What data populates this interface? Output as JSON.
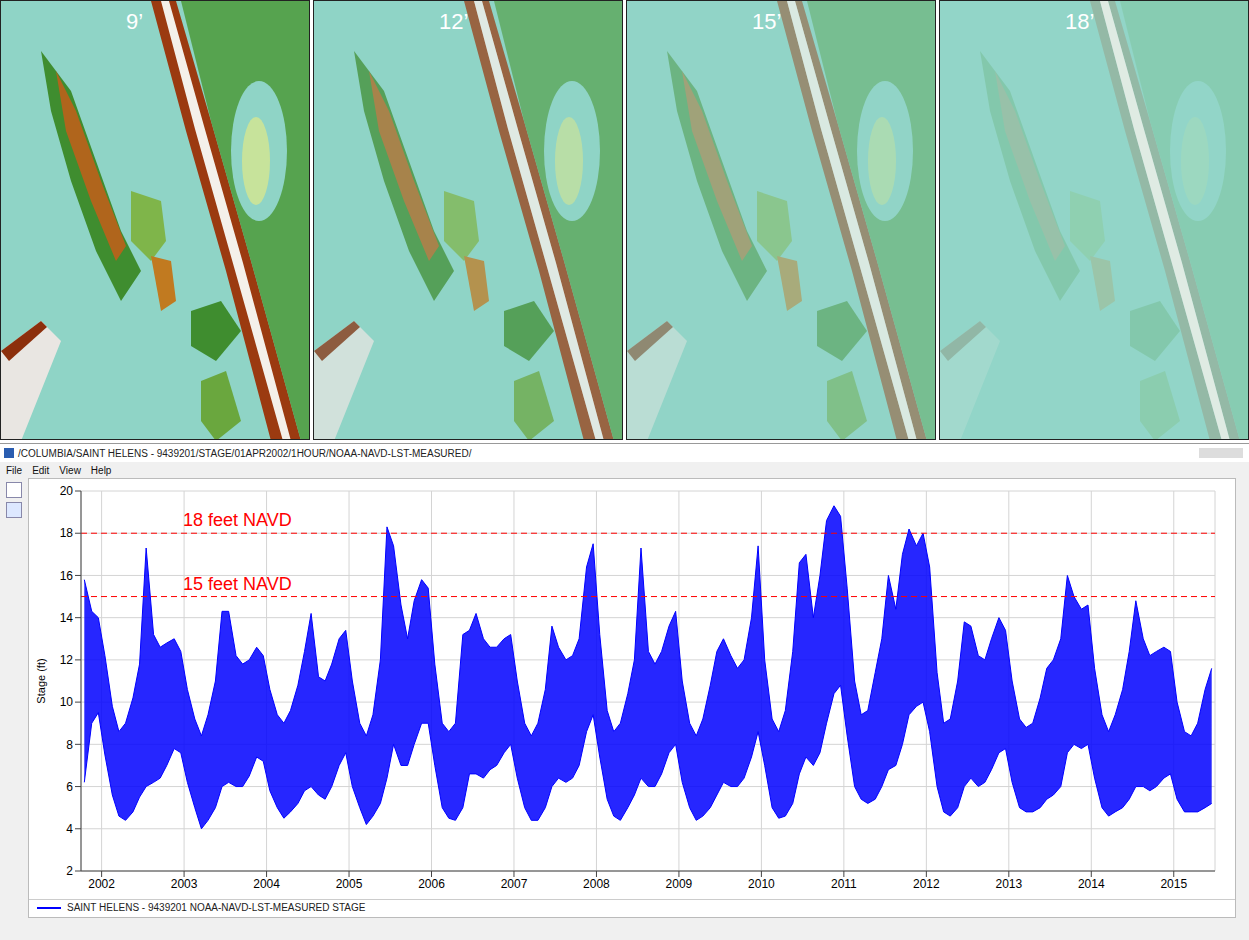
{
  "panels": [
    {
      "label": "9’"
    },
    {
      "label": "12’"
    },
    {
      "label": "15’"
    },
    {
      "label": "18’"
    }
  ],
  "window_title": "/COLUMBIA/SAINT HELENS - 9439201/STAGE/01APR2002/1HOUR/NOAA-NAVD-LST-MEASURED/",
  "menu": [
    "File",
    "Edit",
    "View",
    "Help"
  ],
  "chart_data": {
    "type": "area",
    "y_label": "Stage (ft)",
    "x": [
      2002.29,
      2002.38,
      2002.46,
      2002.54,
      2002.63,
      2002.71,
      2002.79,
      2002.88,
      2002.96,
      2003.04,
      2003.13,
      2003.21,
      2003.29,
      2003.38,
      2003.46,
      2003.54,
      2003.63,
      2003.71,
      2003.79,
      2003.88,
      2003.96,
      2004.04,
      2004.13,
      2004.21,
      2004.29,
      2004.38,
      2004.46,
      2004.54,
      2004.63,
      2004.71,
      2004.79,
      2004.88,
      2004.96,
      2005.04,
      2005.13,
      2005.21,
      2005.29,
      2005.38,
      2005.46,
      2005.54,
      2005.63,
      2005.71,
      2005.79,
      2005.88,
      2005.96,
      2006.04,
      2006.13,
      2006.21,
      2006.29,
      2006.38,
      2006.46,
      2006.54,
      2006.63,
      2006.71,
      2006.79,
      2006.88,
      2006.96,
      2007.04,
      2007.13,
      2007.21,
      2007.29,
      2007.38,
      2007.46,
      2007.54,
      2007.63,
      2007.71,
      2007.79,
      2007.88,
      2007.96,
      2008.04,
      2008.13,
      2008.21,
      2008.29,
      2008.38,
      2008.46,
      2008.54,
      2008.63,
      2008.71,
      2008.79,
      2008.88,
      2008.96,
      2009.04,
      2009.13,
      2009.21,
      2009.29,
      2009.38,
      2009.46,
      2009.54,
      2009.63,
      2009.71,
      2009.79,
      2009.88,
      2009.96,
      2010.04,
      2010.13,
      2010.21,
      2010.29,
      2010.38,
      2010.46,
      2010.54,
      2010.63,
      2010.71,
      2010.79,
      2010.88,
      2010.96,
      2011.04,
      2011.13,
      2011.21,
      2011.29,
      2011.38,
      2011.46,
      2011.54,
      2011.63,
      2011.71,
      2011.79,
      2011.88,
      2011.96,
      2012.04,
      2012.13,
      2012.21,
      2012.29,
      2012.38,
      2012.46,
      2012.54,
      2012.63,
      2012.71,
      2012.79,
      2012.88,
      2012.96,
      2013.04,
      2013.13,
      2013.21,
      2013.29,
      2013.38,
      2013.46,
      2013.54,
      2013.63,
      2013.71,
      2013.79,
      2013.88,
      2013.96,
      2014.04,
      2014.13,
      2014.21,
      2014.29,
      2014.38,
      2014.46,
      2014.54,
      2014.63,
      2014.71,
      2014.79,
      2014.88,
      2014.96,
      2015.04,
      2015.13,
      2015.21,
      2015.29,
      2015.38,
      2015.46,
      2015.54,
      2015.63,
      2015.71,
      2015.79,
      2015.88,
      2015.96
    ],
    "series": [
      {
        "name": "SAINT HELENS - 9439201 NOAA-NAVD-LST-MEASURED STAGE",
        "color": "#0000ff",
        "values": [
          [
            6.2,
            15.8
          ],
          [
            9,
            14.3
          ],
          [
            9.5,
            14
          ],
          [
            7.5,
            12.2
          ],
          [
            5.6,
            9.8
          ],
          [
            4.6,
            8.6
          ],
          [
            4.4,
            9
          ],
          [
            4.8,
            10.2
          ],
          [
            5.5,
            11.8
          ],
          [
            6,
            17.3
          ],
          [
            6.2,
            13.2
          ],
          [
            6.4,
            12.6
          ],
          [
            7,
            12.8
          ],
          [
            7.8,
            13
          ],
          [
            7.6,
            12.4
          ],
          [
            6.2,
            10.6
          ],
          [
            5,
            9.2
          ],
          [
            4,
            8.4
          ],
          [
            4.4,
            9.4
          ],
          [
            5,
            11
          ],
          [
            6,
            14.3
          ],
          [
            6.2,
            14.3
          ],
          [
            6,
            12.2
          ],
          [
            6,
            11.8
          ],
          [
            6.5,
            12
          ],
          [
            7.4,
            12.6
          ],
          [
            7.2,
            12.2
          ],
          [
            5.8,
            10.6
          ],
          [
            5,
            9.4
          ],
          [
            4.5,
            9
          ],
          [
            4.8,
            9.6
          ],
          [
            5.2,
            10.8
          ],
          [
            5.8,
            12.4
          ],
          [
            6,
            14.2
          ],
          [
            5.6,
            11.2
          ],
          [
            5.4,
            11
          ],
          [
            6,
            11.8
          ],
          [
            7,
            13
          ],
          [
            7.6,
            13.4
          ],
          [
            6,
            11
          ],
          [
            5,
            9
          ],
          [
            4.2,
            8.4
          ],
          [
            4.6,
            9.4
          ],
          [
            5.2,
            12
          ],
          [
            6.4,
            18.3
          ],
          [
            8,
            17.4
          ],
          [
            7,
            14.6
          ],
          [
            7,
            13
          ],
          [
            8,
            14.8
          ],
          [
            9,
            15.8
          ],
          [
            9,
            15.4
          ],
          [
            7,
            11.8
          ],
          [
            5,
            9
          ],
          [
            4.5,
            8.6
          ],
          [
            4.4,
            9
          ],
          [
            5,
            13.2
          ],
          [
            6.6,
            13.4
          ],
          [
            6.6,
            14.2
          ],
          [
            6.4,
            13
          ],
          [
            6.8,
            12.6
          ],
          [
            7,
            12.6
          ],
          [
            7.6,
            13
          ],
          [
            8,
            13.2
          ],
          [
            6.4,
            11
          ],
          [
            5,
            9
          ],
          [
            4.4,
            8.4
          ],
          [
            4.4,
            9
          ],
          [
            5,
            10.6
          ],
          [
            6,
            13.6
          ],
          [
            6.4,
            12.6
          ],
          [
            6.2,
            12
          ],
          [
            6.4,
            12.2
          ],
          [
            7,
            13
          ],
          [
            8.6,
            16.4
          ],
          [
            9.4,
            17.5
          ],
          [
            7.4,
            13.2
          ],
          [
            5.4,
            9.6
          ],
          [
            4.6,
            8.6
          ],
          [
            4.4,
            9
          ],
          [
            5,
            10.4
          ],
          [
            5.6,
            12
          ],
          [
            6.4,
            17.3
          ],
          [
            6,
            12.4
          ],
          [
            6,
            11.8
          ],
          [
            6.6,
            12.4
          ],
          [
            7.6,
            13.6
          ],
          [
            8,
            14.3
          ],
          [
            6.2,
            11
          ],
          [
            5,
            9
          ],
          [
            4.4,
            8.4
          ],
          [
            4.6,
            9.2
          ],
          [
            5,
            10.8
          ],
          [
            5.6,
            12.4
          ],
          [
            6.2,
            13
          ],
          [
            6,
            12.2
          ],
          [
            6,
            11.6
          ],
          [
            6.4,
            12
          ],
          [
            7.4,
            14
          ],
          [
            8.6,
            17.4
          ],
          [
            7,
            12
          ],
          [
            5,
            9.2
          ],
          [
            4.5,
            8.6
          ],
          [
            4.6,
            9.6
          ],
          [
            5.2,
            12.4
          ],
          [
            6.6,
            16.6
          ],
          [
            7.4,
            17
          ],
          [
            7,
            14
          ],
          [
            7.6,
            16
          ],
          [
            9,
            18.6
          ],
          [
            10.4,
            19.3
          ],
          [
            10.8,
            18.8
          ],
          [
            8.4,
            15.4
          ],
          [
            6,
            11
          ],
          [
            5.4,
            9.4
          ],
          [
            5.2,
            9.6
          ],
          [
            5.4,
            11.4
          ],
          [
            6,
            13
          ],
          [
            6.8,
            16
          ],
          [
            7,
            14.4
          ],
          [
            8,
            17
          ],
          [
            9.4,
            18.2
          ],
          [
            9.8,
            17.4
          ],
          [
            10,
            18
          ],
          [
            8.6,
            16.4
          ],
          [
            6,
            11.4
          ],
          [
            4.8,
            9
          ],
          [
            4.6,
            9.2
          ],
          [
            5,
            11
          ],
          [
            6,
            13.8
          ],
          [
            6.4,
            13.6
          ],
          [
            6,
            12.2
          ],
          [
            6.2,
            12
          ],
          [
            6.8,
            13
          ],
          [
            7.6,
            14
          ],
          [
            7.8,
            13.4
          ],
          [
            6.2,
            11
          ],
          [
            5,
            9.2
          ],
          [
            4.8,
            8.8
          ],
          [
            4.8,
            9
          ],
          [
            5,
            10.2
          ],
          [
            5.4,
            11.6
          ],
          [
            5.6,
            12
          ],
          [
            6,
            13
          ],
          [
            7.6,
            16
          ],
          [
            8,
            15
          ],
          [
            7.8,
            14.4
          ],
          [
            8,
            14.6
          ],
          [
            6.4,
            11.6
          ],
          [
            5,
            9.4
          ],
          [
            4.6,
            8.6
          ],
          [
            4.8,
            9.4
          ],
          [
            5,
            10.6
          ],
          [
            5.4,
            12.4
          ],
          [
            6,
            14.8
          ],
          [
            6,
            13
          ],
          [
            5.8,
            12.2
          ],
          [
            6,
            12.4
          ],
          [
            6.4,
            12.6
          ],
          [
            6.6,
            12.4
          ],
          [
            5.4,
            10
          ],
          [
            4.8,
            8.6
          ],
          [
            4.8,
            8.4
          ],
          [
            4.8,
            9
          ],
          [
            5,
            10.6
          ],
          [
            5.2,
            11.6
          ]
        ]
      }
    ],
    "xlim": [
      2002.25,
      2016
    ],
    "xticks": [
      {
        "value": 2002.5,
        "label": "2002"
      },
      {
        "value": 2003.5,
        "label": "2003"
      },
      {
        "value": 2004.5,
        "label": "2004"
      },
      {
        "value": 2005.5,
        "label": "2005"
      },
      {
        "value": 2006.5,
        "label": "2006"
      },
      {
        "value": 2007.5,
        "label": "2007"
      },
      {
        "value": 2008.5,
        "label": "2008"
      },
      {
        "value": 2009.5,
        "label": "2009"
      },
      {
        "value": 2010.5,
        "label": "2010"
      },
      {
        "value": 2011.5,
        "label": "2011"
      },
      {
        "value": 2012.5,
        "label": "2012"
      },
      {
        "value": 2013.5,
        "label": "2013"
      },
      {
        "value": 2014.5,
        "label": "2014"
      },
      {
        "value": 2015.5,
        "label": "2015"
      }
    ],
    "ylim": [
      2,
      20
    ],
    "yticks": [
      2,
      4,
      6,
      8,
      10,
      12,
      14,
      16,
      18,
      20
    ],
    "grid": true,
    "legend": "bottom left",
    "annotations": [
      {
        "y": 18,
        "text": "18 feet NAVD",
        "color": "#ff0000",
        "line_style": "dashed"
      },
      {
        "y": 15,
        "text": "15 feet NAVD",
        "color": "#ff0000",
        "line_style": "dashed"
      }
    ]
  }
}
